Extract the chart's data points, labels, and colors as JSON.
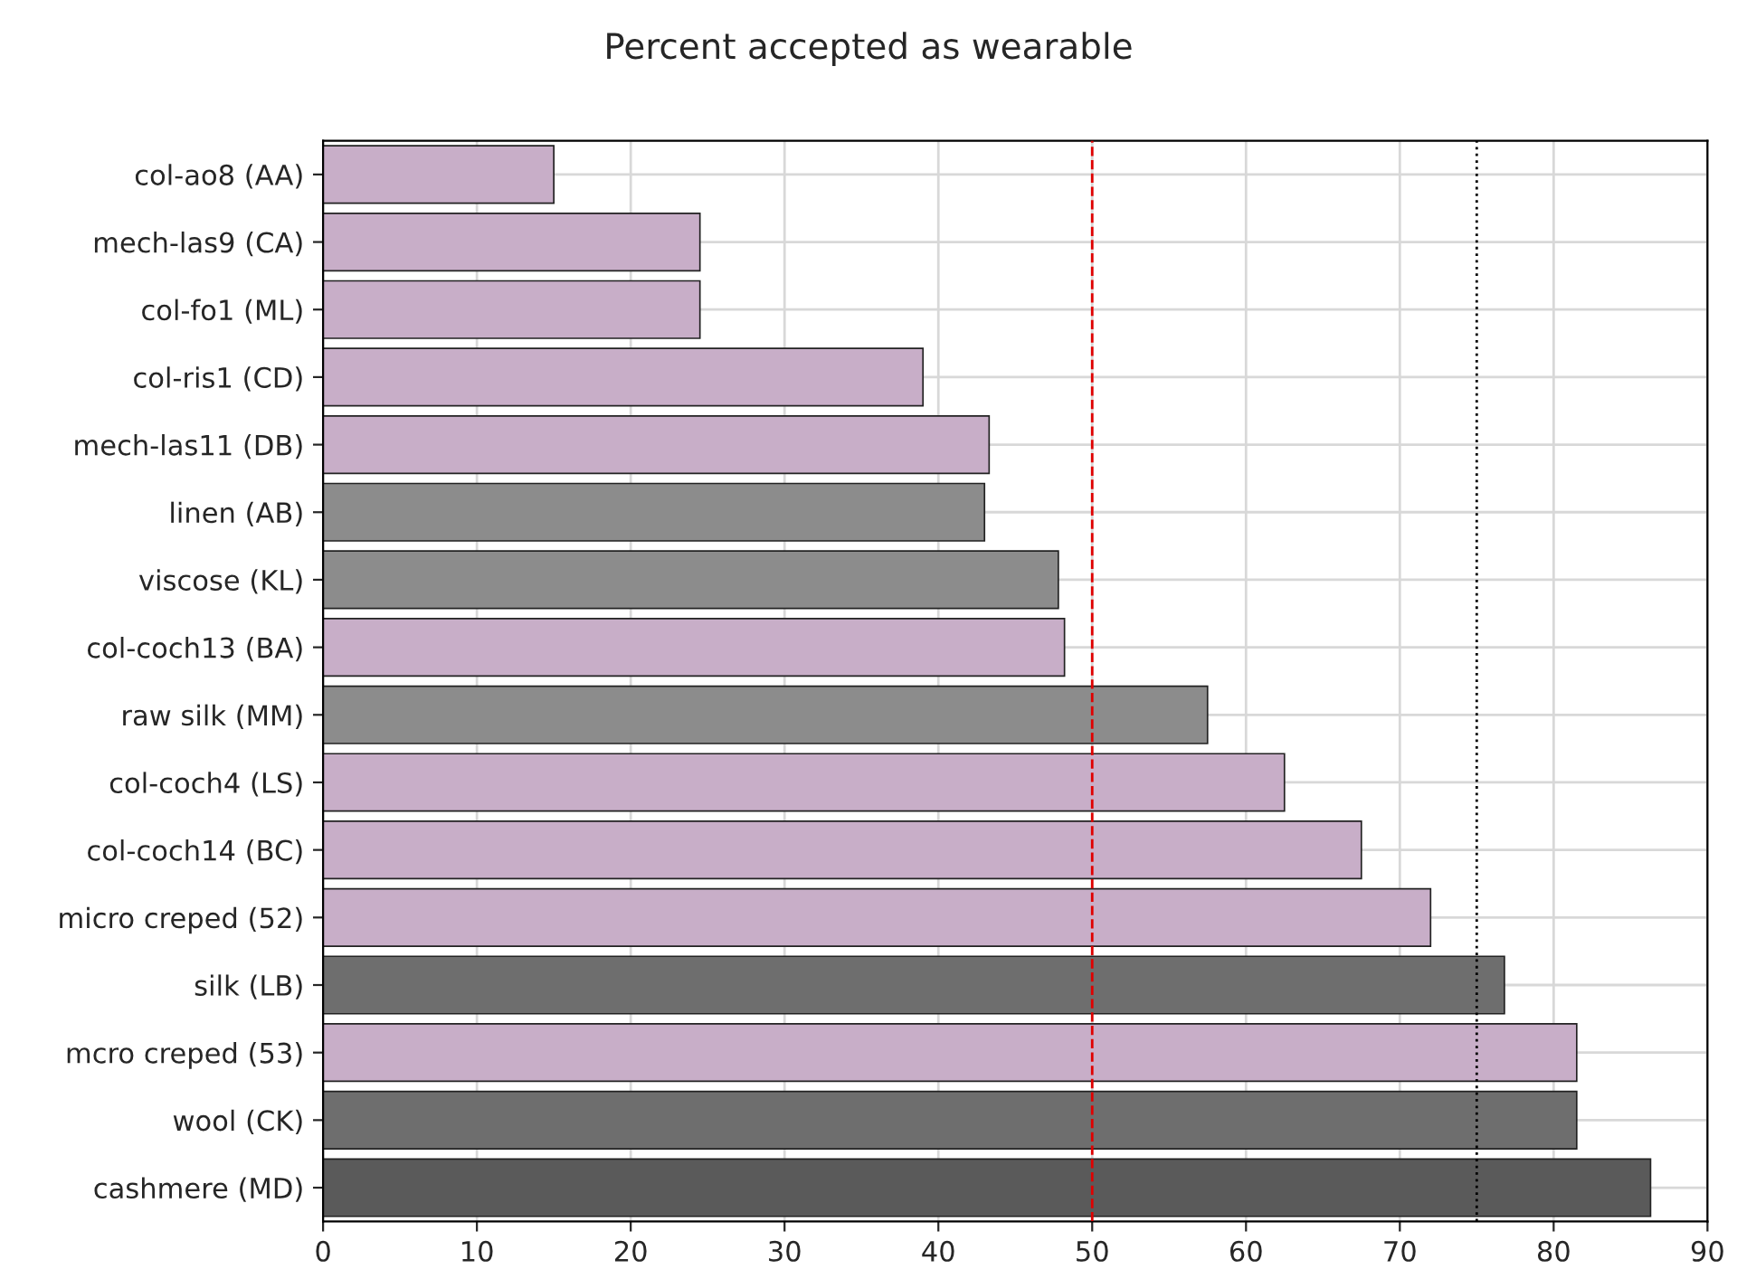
{
  "chart_data": {
    "type": "bar",
    "orientation": "horizontal",
    "title": "Percent accepted as wearable",
    "categories": [
      "col-ao8 (AA)",
      "mech-las9 (CA)",
      "col-fo1 (ML)",
      "col-ris1 (CD)",
      "mech-las11 (DB)",
      "linen (AB)",
      "viscose (KL)",
      "col-coch13 (BA)",
      "raw silk (MM)",
      "col-coch4 (LS)",
      "col-coch14 (BC)",
      "micro creped (52)",
      "silk (LB)",
      "mcro creped (53)",
      "wool (CK)",
      "cashmere (MD)"
    ],
    "values": [
      15,
      24.5,
      24.5,
      39,
      43.3,
      43,
      47.8,
      48.2,
      57.5,
      62.5,
      67.5,
      72,
      76.8,
      81.5,
      81.5,
      86.3
    ],
    "colors": [
      "#c8aec8",
      "#c8aec8",
      "#c8aec8",
      "#c8aec8",
      "#c8aec8",
      "#8c8c8c",
      "#8c8c8c",
      "#c8aec8",
      "#8c8c8c",
      "#c8aec8",
      "#c8aec8",
      "#c8aec8",
      "#6e6e6e",
      "#c8aec8",
      "#6e6e6e",
      "#5a5a5a"
    ],
    "xlim": [
      0,
      90
    ],
    "xticks": [
      0,
      10,
      20,
      30,
      40,
      50,
      60,
      70,
      80,
      90
    ],
    "ref_lines": [
      {
        "axis": "x",
        "value": 50,
        "color": "#e00000",
        "line_style": "dashed"
      },
      {
        "axis": "x",
        "value": 75,
        "color": "#000000",
        "line_style": "dotted"
      }
    ],
    "grid": true
  }
}
